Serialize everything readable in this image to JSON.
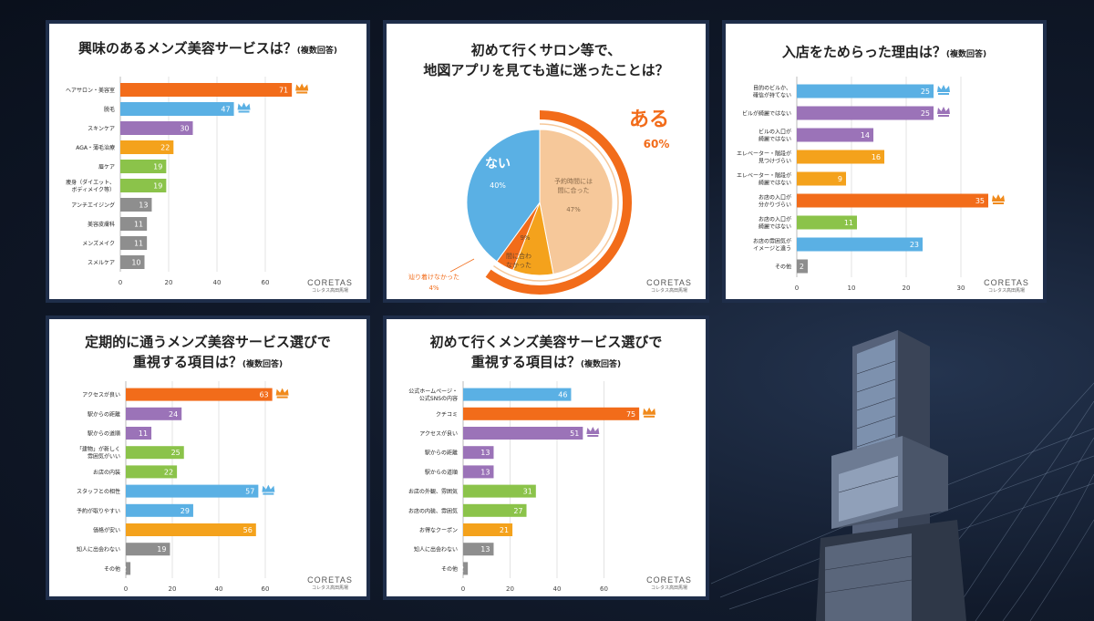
{
  "brand": {
    "name": "CORETAS",
    "sub": "コレタス高田馬場"
  },
  "colors": {
    "orange": "#f26c1a",
    "blue": "#5ab0e4",
    "purple": "#9b73b8",
    "yellow": "#f4a21c",
    "green": "#8bc34a",
    "gray": "#8e8e8e",
    "peach": "#f6c89a",
    "crown_orange": "#f08a1c",
    "crown_blue": "#5ab0e4",
    "crown_purple": "#9b73b8"
  },
  "chart_data": [
    {
      "type": "bar",
      "title": "興味のあるメンズ美容サービスは？",
      "subtitle": "(複数回答)",
      "categories": [
        "ヘアサロン・美容室",
        "脱毛",
        "スキンケア",
        "AGA・薄毛治療",
        "眉ケア",
        "痩身（ダイエット、ボディメイク等）",
        "アンチエイジング",
        "美容皮膚科",
        "メンズメイク",
        "スメルケア"
      ],
      "values": [
        71,
        47,
        30,
        22,
        19,
        19,
        13,
        11,
        11,
        10
      ],
      "colors": [
        "orange",
        "blue",
        "purple",
        "yellow",
        "green",
        "green",
        "gray",
        "gray",
        "gray",
        "gray"
      ],
      "crowns": [
        {
          "index": 0,
          "color": "crown_orange"
        },
        {
          "index": 1,
          "color": "crown_blue"
        }
      ],
      "xlim": [
        0,
        80
      ],
      "ticks": [
        0,
        20,
        40,
        60
      ],
      "grid": true
    },
    {
      "type": "pie",
      "title": "初めて行くサロン等で、地図アプリを見ても道に迷ったことは？",
      "title_lines": [
        "初めて行くサロン等で、",
        "地図アプリを見ても道に迷ったことは？"
      ],
      "outer_ring": [
        {
          "label": "ある",
          "value": 60,
          "value_label": "60%"
        }
      ],
      "slices": [
        {
          "label": "ない",
          "value": 40,
          "value_label": "40%",
          "color": "blue"
        },
        {
          "label": "辿り着けなかった",
          "value": 4,
          "value_label": "4%",
          "color": "orange"
        },
        {
          "label": "間に合わなかった",
          "value": 9,
          "value_label": "9%",
          "color": "yellow"
        },
        {
          "label": "予約時間には間に合った",
          "value": 47,
          "value_label": "47%",
          "color": "peach"
        }
      ],
      "slice_labels": {
        "none": "ない",
        "none_pct": "40%",
        "lost": "辿り着けなかった",
        "lost_pct": "4%",
        "late_1": "間に合わ",
        "late_2": "なかった",
        "late_pct": "9%",
        "ontime_1": "予約時間には",
        "ontime_2": "間に合った",
        "ontime_pct": "47%",
        "yes": "ある",
        "yes_pct": "60%"
      }
    },
    {
      "type": "bar",
      "title": "入店をためらった理由は？",
      "subtitle": "(複数回答)",
      "categories": [
        "目的のビルか、確信が持てない",
        "ビルが綺麗ではない",
        "ビルの入口が綺麗ではない",
        "エレベーター・階段が見つけづらい",
        "エレベーター・階段が綺麗ではない",
        "お店の入口が分かりづらい",
        "お店の入口が綺麗ではない",
        "お店の雰囲気がイメージと違う",
        "その他"
      ],
      "label_lines": [
        [
          "目的のビルか、",
          "確信が持てない"
        ],
        [
          "ビルが綺麗ではない"
        ],
        [
          "ビルの入口が",
          "綺麗ではない"
        ],
        [
          "エレベーター・階段が",
          "見つけづらい"
        ],
        [
          "エレベーター・階段が",
          "綺麗ではない"
        ],
        [
          "お店の入口が",
          "分かりづらい"
        ],
        [
          "お店の入口が",
          "綺麗ではない"
        ],
        [
          "お店の雰囲気が",
          "イメージと違う"
        ],
        [
          "その他"
        ]
      ],
      "values": [
        25,
        25,
        14,
        16,
        9,
        35,
        11,
        23,
        2
      ],
      "colors": [
        "blue",
        "purple",
        "purple",
        "yellow",
        "yellow",
        "orange",
        "green",
        "blue",
        "gray"
      ],
      "crowns": [
        {
          "index": 0,
          "color": "crown_blue"
        },
        {
          "index": 1,
          "color": "crown_purple"
        },
        {
          "index": 5,
          "color": "crown_orange"
        }
      ],
      "xlim": [
        0,
        40
      ],
      "ticks": [
        0,
        10,
        20,
        30
      ],
      "grid": true
    },
    {
      "type": "bar",
      "title": "定期的に通うメンズ美容サービス選びで重視する項目は？",
      "title_lines": [
        "定期的に通うメンズ美容サービス選びで",
        "重視する項目は？"
      ],
      "subtitle": "(複数回答)",
      "categories": [
        "アクセスが良い",
        "駅からの距離",
        "駅からの道順",
        "「建物」が新しく雰囲気がいい",
        "お店の内装",
        "スタッフとの相性",
        "予約が取りやすい",
        "価格が安い",
        "知人に出会わない",
        "その他"
      ],
      "label_lines": [
        [
          "アクセスが良い"
        ],
        [
          "駅からの距離"
        ],
        [
          "駅からの道順"
        ],
        [
          "「建物」が新しく",
          "雰囲気がいい"
        ],
        [
          "お店の内装"
        ],
        [
          "スタッフとの相性"
        ],
        [
          "予約が取りやすい"
        ],
        [
          "価格が安い"
        ],
        [
          "知人に出会わない"
        ],
        [
          "その他"
        ]
      ],
      "values": [
        63,
        24,
        11,
        25,
        22,
        57,
        29,
        56,
        19,
        2
      ],
      "colors": [
        "orange",
        "purple",
        "purple",
        "green",
        "green",
        "blue",
        "blue",
        "yellow",
        "gray",
        "gray"
      ],
      "crowns": [
        {
          "index": 0,
          "color": "crown_orange"
        },
        {
          "index": 5,
          "color": "crown_blue"
        }
      ],
      "xlim": [
        0,
        80
      ],
      "ticks": [
        0,
        20,
        40,
        60
      ],
      "grid": true
    },
    {
      "type": "bar",
      "title": "初めて行くメンズ美容サービス選びで重視する項目は？",
      "title_lines": [
        "初めて行くメンズ美容サービス選びで",
        "重視する項目は？"
      ],
      "subtitle": "(複数回答)",
      "categories": [
        "公式ホームページ・公式SNSの内容",
        "クチコミ",
        "アクセスが良い",
        "駅からの距離",
        "駅からの道順",
        "お店の外観、雰囲気",
        "お店の内装、雰囲気",
        "お得なクーポン",
        "知人に出会わない",
        "その他"
      ],
      "label_lines": [
        [
          "公式ホームページ・",
          "公式SNSの内容"
        ],
        [
          "クチコミ"
        ],
        [
          "アクセスが良い"
        ],
        [
          "駅からの距離"
        ],
        [
          "駅からの道順"
        ],
        [
          "お店の外観、雰囲気"
        ],
        [
          "お店の内装、雰囲気"
        ],
        [
          "お得なクーポン"
        ],
        [
          "知人に出会わない"
        ],
        [
          "その他"
        ]
      ],
      "values": [
        46,
        75,
        51,
        13,
        13,
        31,
        27,
        21,
        13,
        2
      ],
      "colors": [
        "blue",
        "orange",
        "purple",
        "purple",
        "purple",
        "green",
        "green",
        "yellow",
        "gray",
        "gray"
      ],
      "crowns": [
        {
          "index": 1,
          "color": "crown_orange"
        },
        {
          "index": 2,
          "color": "crown_purple"
        }
      ],
      "xlim": [
        0,
        80
      ],
      "ticks": [
        0,
        20,
        40,
        60
      ],
      "grid": true
    }
  ]
}
